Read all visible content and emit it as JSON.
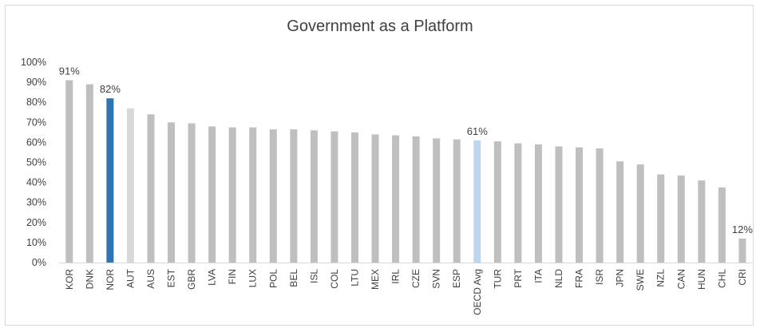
{
  "chart_data": {
    "type": "bar",
    "title": "Government as a Platform",
    "xlabel": "",
    "ylabel": "",
    "ylim": [
      0,
      1
    ],
    "yticks": [
      "0%",
      "10%",
      "20%",
      "30%",
      "40%",
      "50%",
      "60%",
      "70%",
      "80%",
      "90%",
      "100%"
    ],
    "grid": false,
    "categories": [
      "KOR",
      "DNK",
      "NOR",
      "AUT",
      "AUS",
      "EST",
      "GBR",
      "LVA",
      "FIN",
      "LUX",
      "POL",
      "BEL",
      "ISL",
      "COL",
      "LTU",
      "MEX",
      "IRL",
      "CZE",
      "SVN",
      "ESP",
      "OECD Avg",
      "TUR",
      "PRT",
      "ITA",
      "NLD",
      "FRA",
      "ISR",
      "JPN",
      "SWE",
      "NZL",
      "CAN",
      "HUN",
      "CHL",
      "CRI"
    ],
    "values": [
      0.91,
      0.89,
      0.82,
      0.77,
      0.74,
      0.7,
      0.695,
      0.68,
      0.675,
      0.675,
      0.665,
      0.665,
      0.66,
      0.655,
      0.65,
      0.64,
      0.635,
      0.63,
      0.62,
      0.615,
      0.61,
      0.605,
      0.595,
      0.59,
      0.58,
      0.575,
      0.57,
      0.505,
      0.49,
      0.44,
      0.435,
      0.41,
      0.375,
      0.12
    ],
    "data_labels": [
      {
        "category": "KOR",
        "text": "91%"
      },
      {
        "category": "NOR",
        "text": "82%"
      },
      {
        "category": "OECD Avg",
        "text": "61%"
      },
      {
        "category": "CRI",
        "text": "12%"
      }
    ],
    "colors": {
      "default": "#bfbfbf",
      "NOR": "#2e75b6",
      "AUT": "#d9d9d9",
      "OECD Avg": "#bdd7ee"
    }
  }
}
